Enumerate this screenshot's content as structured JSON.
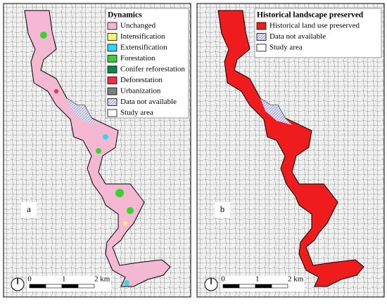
{
  "panels": [
    {
      "label": "a",
      "legend": {
        "title": "Dynamics",
        "items": [
          {
            "label": "Unchanged",
            "color": "#f5b8d2"
          },
          {
            "label": "Intensification",
            "color": "#f7f27a"
          },
          {
            "label": "Extensification",
            "color": "#33d6f0"
          },
          {
            "label": "Forestation",
            "color": "#35d52e"
          },
          {
            "label": "Conifer reforestation",
            "color": "#0a8a4a"
          },
          {
            "label": "Deforestation",
            "color": "#e8304a"
          },
          {
            "label": "Urbanization",
            "color": "#808080"
          },
          {
            "label": "Data not available",
            "color": "#c2c2e6"
          },
          {
            "label": "Study area",
            "color": "#ffffff"
          }
        ]
      },
      "scale": [
        "0",
        "1",
        "2 km"
      ]
    },
    {
      "label": "b",
      "legend": {
        "title": "Historical landscape preserved",
        "items": [
          {
            "label": "Historical land use preserved",
            "color": "#ee1c1c"
          },
          {
            "label": "Data not available",
            "color": "#c2c2e6"
          },
          {
            "label": "Study area",
            "color": "#ffffff"
          }
        ]
      },
      "scale": [
        "0",
        "1",
        "2 km"
      ]
    }
  ]
}
